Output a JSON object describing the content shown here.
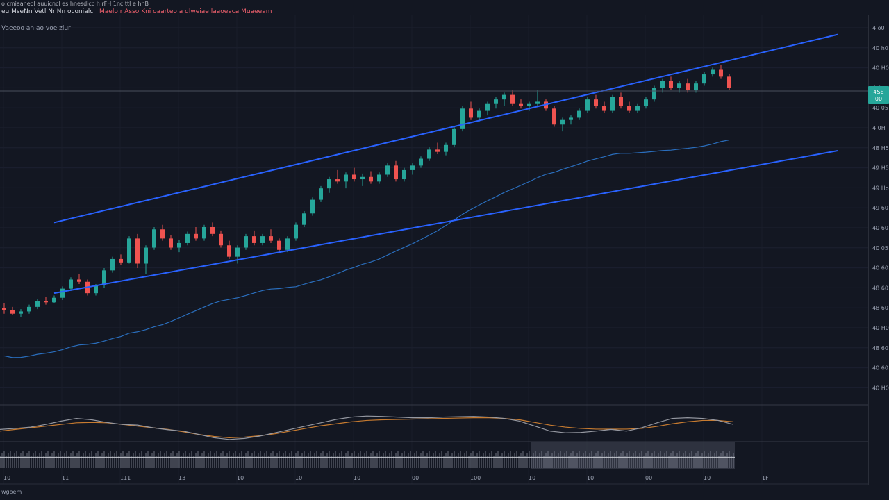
{
  "header": {
    "line1": "o cmiaaneol auuicncl es hnesdicc h rFH 1nc ttl e hnB",
    "symbol": "eu MseNn Vetl NnNn oconialc",
    "ohlc": "Maelo r Asso Kni oaarteo a dlweiae laaoeaca Muaeeam",
    "indicator": "Vaeeoo an ao voe ziur"
  },
  "bottom_label": "wgoem",
  "colors": {
    "background": "#131722",
    "up": "#26a69a",
    "down": "#ef5350",
    "trendline": "#2962ff",
    "ma": "#2a6ebd",
    "osc_fast": "#9598a1",
    "osc_slow": "#c77b30",
    "price_badge": "#26a69a"
  },
  "chart_data": {
    "type": "candlestick",
    "grid": true,
    "price_axis_ticks": [
      "4 o0",
      "40 h0",
      "40 H0",
      "4 0:",
      "40 05",
      "4 0H",
      "48 H5",
      "49 H5",
      "49 Ho",
      "49 60",
      "40 60",
      "40 05",
      "40 60",
      "48 60",
      "48 60",
      "40 H0",
      "48 60",
      "40 60",
      "40 H0"
    ],
    "current_price_label": "4SE\n00",
    "time_axis_labels": [
      "10",
      "11",
      "111",
      "13",
      "10",
      "10",
      "10",
      "00",
      "100",
      "10",
      "10",
      "00",
      "10",
      "1F"
    ],
    "candles": [
      [
        0,
        48.5,
        48.9,
        48.0,
        48.3
      ],
      [
        1,
        48.3,
        48.6,
        47.9,
        48.0
      ],
      [
        2,
        48.0,
        48.4,
        47.7,
        48.2
      ],
      [
        3,
        48.2,
        48.8,
        48.0,
        48.6
      ],
      [
        4,
        48.6,
        49.3,
        48.4,
        49.1
      ],
      [
        5,
        49.1,
        49.5,
        48.8,
        49.0
      ],
      [
        6,
        49.0,
        49.6,
        48.9,
        49.4
      ],
      [
        7,
        49.4,
        50.4,
        49.2,
        50.2
      ],
      [
        8,
        50.2,
        51.2,
        50.0,
        51.0
      ],
      [
        9,
        51.0,
        51.5,
        50.6,
        50.8
      ],
      [
        10,
        50.8,
        51.0,
        49.6,
        49.8
      ],
      [
        11,
        49.8,
        50.6,
        49.6,
        50.5
      ],
      [
        12,
        50.5,
        52.0,
        50.3,
        51.8
      ],
      [
        13,
        51.8,
        53.0,
        51.6,
        52.8
      ],
      [
        14,
        52.8,
        53.2,
        52.3,
        52.5
      ],
      [
        15,
        52.5,
        54.8,
        52.4,
        54.6
      ],
      [
        16,
        54.6,
        55.0,
        52.0,
        52.4
      ],
      [
        17,
        52.4,
        54.0,
        51.5,
        53.8
      ],
      [
        18,
        53.8,
        55.6,
        53.6,
        55.4
      ],
      [
        19,
        55.4,
        55.8,
        54.4,
        54.6
      ],
      [
        20,
        54.6,
        54.9,
        53.6,
        53.8
      ],
      [
        21,
        53.8,
        54.5,
        53.4,
        54.2
      ],
      [
        22,
        54.2,
        55.2,
        54.0,
        55.0
      ],
      [
        23,
        55.0,
        55.6,
        54.4,
        54.6
      ],
      [
        24,
        54.6,
        55.8,
        54.4,
        55.6
      ],
      [
        25,
        55.6,
        56.0,
        54.8,
        55.0
      ],
      [
        26,
        55.0,
        55.3,
        53.8,
        54.0
      ],
      [
        27,
        54.0,
        54.4,
        52.8,
        53.0
      ],
      [
        28,
        53.0,
        54.0,
        52.4,
        53.8
      ],
      [
        29,
        53.8,
        55.0,
        53.6,
        54.8
      ],
      [
        30,
        54.8,
        55.3,
        54.0,
        54.2
      ],
      [
        31,
        54.2,
        55.0,
        54.0,
        54.8
      ],
      [
        32,
        54.8,
        55.4,
        54.2,
        54.4
      ],
      [
        33,
        54.4,
        54.6,
        53.4,
        53.6
      ],
      [
        34,
        53.6,
        54.8,
        53.4,
        54.6
      ],
      [
        35,
        54.6,
        56.0,
        54.4,
        55.8
      ],
      [
        36,
        55.8,
        57.0,
        55.6,
        56.8
      ],
      [
        37,
        56.8,
        58.2,
        56.6,
        58.0
      ],
      [
        38,
        58.0,
        59.2,
        57.8,
        59.0
      ],
      [
        39,
        59.0,
        60.0,
        58.6,
        59.8
      ],
      [
        40,
        59.8,
        60.6,
        59.4,
        59.6
      ],
      [
        41,
        59.6,
        60.4,
        59.0,
        60.2
      ],
      [
        42,
        60.2,
        60.8,
        59.6,
        59.8
      ],
      [
        43,
        59.8,
        60.3,
        59.2,
        60.0
      ],
      [
        44,
        60.0,
        60.5,
        59.4,
        59.6
      ],
      [
        45,
        59.6,
        60.4,
        59.4,
        60.2
      ],
      [
        46,
        60.2,
        61.2,
        60.0,
        61.0
      ],
      [
        47,
        61.0,
        61.4,
        59.6,
        59.8
      ],
      [
        48,
        59.8,
        60.8,
        59.6,
        60.6
      ],
      [
        49,
        60.6,
        61.2,
        60.2,
        61.0
      ],
      [
        50,
        61.0,
        61.8,
        60.8,
        61.6
      ],
      [
        51,
        61.6,
        62.6,
        61.4,
        62.4
      ],
      [
        52,
        62.4,
        63.0,
        62.0,
        62.2
      ],
      [
        53,
        62.2,
        63.0,
        61.9,
        62.8
      ],
      [
        54,
        62.8,
        64.4,
        62.6,
        64.2
      ],
      [
        55,
        64.2,
        66.2,
        64.0,
        66.0
      ],
      [
        56,
        66.0,
        66.6,
        65.0,
        65.2
      ],
      [
        57,
        65.2,
        66.0,
        64.8,
        65.8
      ],
      [
        58,
        65.8,
        66.6,
        65.4,
        66.4
      ],
      [
        59,
        66.4,
        67.0,
        66.0,
        66.8
      ],
      [
        60,
        66.8,
        67.4,
        66.2,
        67.2
      ],
      [
        61,
        67.2,
        67.6,
        66.2,
        66.4
      ],
      [
        62,
        66.4,
        66.8,
        66.0,
        66.2
      ],
      [
        63,
        66.2,
        66.6,
        65.8,
        66.4
      ],
      [
        64,
        66.4,
        67.6,
        66.2,
        66.6
      ],
      [
        65,
        66.6,
        66.8,
        65.8,
        66.0
      ],
      [
        66,
        66.0,
        66.2,
        64.4,
        64.6
      ],
      [
        67,
        64.6,
        65.2,
        64.0,
        65.0
      ],
      [
        68,
        65.0,
        65.4,
        64.6,
        65.2
      ],
      [
        69,
        65.2,
        66.0,
        65.0,
        65.8
      ],
      [
        70,
        65.8,
        67.0,
        65.6,
        66.8
      ],
      [
        71,
        66.8,
        67.2,
        66.0,
        66.2
      ],
      [
        72,
        66.2,
        66.6,
        65.6,
        65.8
      ],
      [
        73,
        65.8,
        67.2,
        65.6,
        67.0
      ],
      [
        74,
        67.0,
        67.4,
        66.0,
        66.2
      ],
      [
        75,
        66.2,
        66.6,
        65.6,
        65.8
      ],
      [
        76,
        65.8,
        66.4,
        65.6,
        66.2
      ],
      [
        77,
        66.2,
        67.0,
        66.0,
        66.8
      ],
      [
        78,
        66.8,
        68.0,
        66.6,
        67.8
      ],
      [
        79,
        67.8,
        68.6,
        67.4,
        68.4
      ],
      [
        80,
        68.4,
        68.8,
        67.6,
        67.8
      ],
      [
        81,
        67.8,
        68.4,
        67.4,
        68.2
      ],
      [
        82,
        68.2,
        68.6,
        67.4,
        67.6
      ],
      [
        83,
        67.6,
        68.4,
        67.4,
        68.2
      ],
      [
        84,
        68.2,
        69.2,
        68.0,
        69.0
      ],
      [
        85,
        69.0,
        69.6,
        68.8,
        69.4
      ],
      [
        86,
        69.4,
        69.8,
        68.6,
        68.8
      ],
      [
        87,
        68.8,
        69.0,
        67.6,
        67.8
      ]
    ],
    "trendlines": [
      {
        "name": "channel-upper",
        "from": [
          6,
          56.0
        ],
        "to": [
          100,
          72.5
        ]
      },
      {
        "name": "channel-lower",
        "from": [
          6,
          49.8
        ],
        "to": [
          100,
          62.3
        ]
      }
    ],
    "oscillator": {
      "fast": [
        0.45,
        0.48,
        0.52,
        0.6,
        0.7,
        0.78,
        0.74,
        0.66,
        0.6,
        0.58,
        0.5,
        0.44,
        0.4,
        0.3,
        0.2,
        0.15,
        0.18,
        0.25,
        0.35,
        0.45,
        0.55,
        0.65,
        0.75,
        0.82,
        0.85,
        0.84,
        0.82,
        0.8,
        0.8,
        0.82,
        0.83,
        0.84,
        0.82,
        0.78,
        0.7,
        0.55,
        0.4,
        0.35,
        0.36,
        0.4,
        0.45,
        0.4,
        0.5,
        0.65,
        0.78,
        0.8,
        0.78,
        0.72,
        0.6
      ],
      "slow": [
        0.4,
        0.45,
        0.5,
        0.55,
        0.6,
        0.65,
        0.66,
        0.65,
        0.6,
        0.55,
        0.5,
        0.45,
        0.38,
        0.3,
        0.24,
        0.2,
        0.22,
        0.26,
        0.32,
        0.4,
        0.48,
        0.56,
        0.62,
        0.68,
        0.72,
        0.74,
        0.75,
        0.76,
        0.77,
        0.78,
        0.79,
        0.8,
        0.8,
        0.78,
        0.74,
        0.66,
        0.58,
        0.52,
        0.48,
        0.46,
        0.46,
        0.46,
        0.48,
        0.54,
        0.62,
        0.68,
        0.72,
        0.72,
        0.68
      ]
    },
    "volume_baseline": 0.6
  }
}
